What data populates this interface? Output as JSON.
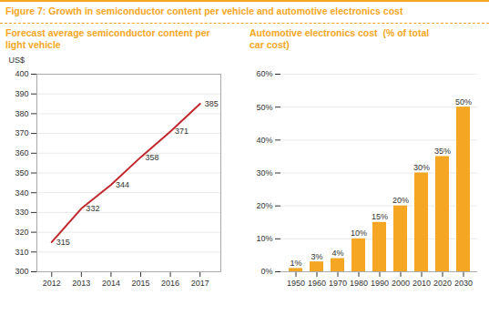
{
  "title": "Figure 7: Growth in semiconductor content per vehicle and automotive electronics cost",
  "chart_data": [
    {
      "type": "line",
      "title": "Forecast average semiconductor content per\nlight vehicle",
      "y_label": "US$",
      "x": [
        2012,
        2013,
        2014,
        2015,
        2016,
        2017
      ],
      "values": [
        315,
        332,
        344,
        358,
        371,
        385
      ],
      "color": "#c0282d",
      "xlim": [
        2011.5,
        2017.7
      ],
      "xticks": [
        2012,
        2013,
        2014,
        2015,
        2016,
        2017
      ],
      "ylim": [
        300,
        400
      ],
      "yticks": [
        300,
        310,
        320,
        330,
        340,
        350,
        360,
        370,
        380,
        390,
        400
      ],
      "grid": true,
      "data_labels": true
    },
    {
      "type": "bar",
      "title": "Automotive electronics cost  (% of total\ncar cost)",
      "categories": [
        "1950",
        "1960",
        "1970",
        "1980",
        "1990",
        "2000",
        "2010",
        "2020",
        "2030"
      ],
      "values": [
        1,
        3,
        4,
        10,
        15,
        20,
        30,
        35,
        50
      ],
      "value_labels": [
        "1%",
        "3%",
        "4%",
        "10%",
        "15%",
        "20%",
        "30%",
        "35%",
        "50%"
      ],
      "color": "#f5a623",
      "ylim": [
        0,
        60
      ],
      "yticks": [
        {
          "value": 0,
          "label": "0%"
        },
        {
          "value": 10,
          "label": "10%"
        },
        {
          "value": 20,
          "label": "20%"
        },
        {
          "value": 30,
          "label": "30%"
        },
        {
          "value": 40,
          "label": "40%"
        },
        {
          "value": 50,
          "label": "50%"
        },
        {
          "value": 60,
          "label": "60%"
        }
      ],
      "grid": true,
      "data_labels": true
    }
  ]
}
